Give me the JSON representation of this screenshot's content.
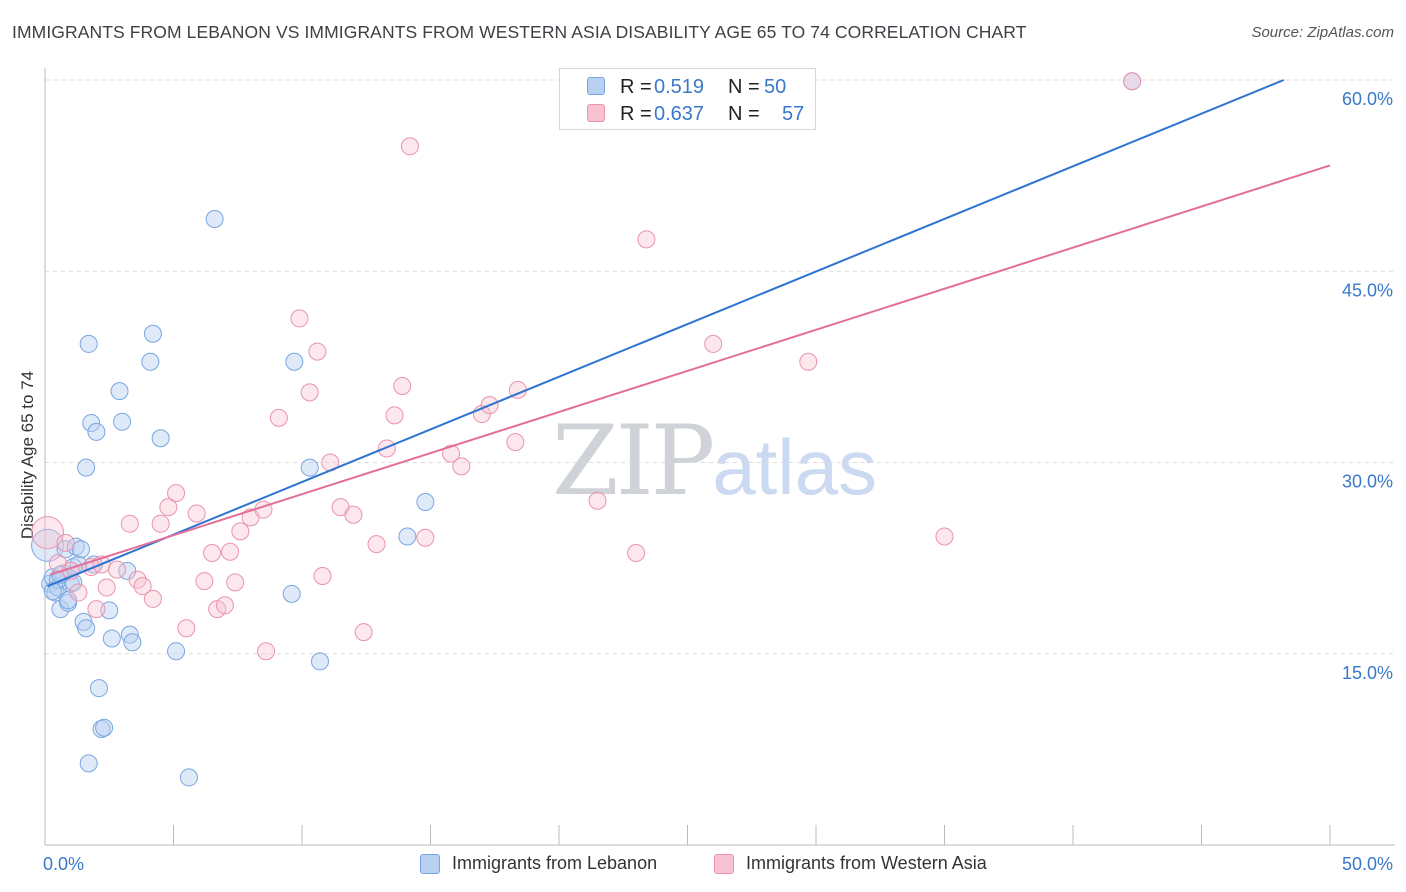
{
  "header": {
    "title": "IMMIGRANTS FROM LEBANON VS IMMIGRANTS FROM WESTERN ASIA DISABILITY AGE 65 TO 74 CORRELATION CHART",
    "source": "Source: ZipAtlas.com"
  },
  "watermark": {
    "zip": "ZIP",
    "atlas": "atlas"
  },
  "legend": {
    "r_label": "R =",
    "n_label": "N =",
    "series": [
      {
        "name": "Immigrants from Lebanon",
        "r": "0.519",
        "n": "50",
        "fill": "#b7d0f2",
        "stroke": "#7aa6e0"
      },
      {
        "name": "Immigrants from Western Asia",
        "r": "0.637",
        "n": "57",
        "fill": "#f8c2d2",
        "stroke": "#ea93ad"
      }
    ]
  },
  "colors": {
    "blue_line": "#2e74d1",
    "pink_line": "#e36f99",
    "axis_tick_text": "#3a78c9",
    "grid": "#dcdcdc"
  },
  "chart_data": {
    "type": "scatter",
    "ylabel": "Disability Age 65 to 74",
    "xlabel": "",
    "xlim": [
      0,
      50
    ],
    "ylim": [
      0,
      60
    ],
    "x_tick_labels": [
      "0.0%",
      "50.0%"
    ],
    "y_ticks": [
      15,
      30,
      45,
      60
    ],
    "y_tick_labels": [
      "15.0%",
      "30.0%",
      "45.0%",
      "60.0%"
    ],
    "series": [
      {
        "name": "Immigrants from Lebanon",
        "trend": {
          "x": [
            0.1,
            48.2
          ],
          "y": [
            20.3,
            60.0
          ]
        },
        "points": [
          [
            0.1,
            23.5
          ],
          [
            0.2,
            20.5
          ],
          [
            0.3,
            21.0
          ],
          [
            0.4,
            19.8
          ],
          [
            0.5,
            20.2
          ],
          [
            0.6,
            18.5
          ],
          [
            0.7,
            21.3
          ],
          [
            0.8,
            23.2
          ],
          [
            0.9,
            19.0
          ],
          [
            1.0,
            20.5
          ],
          [
            1.1,
            21.8
          ],
          [
            1.2,
            23.4
          ],
          [
            1.3,
            22.0
          ],
          [
            1.4,
            23.2
          ],
          [
            1.5,
            17.5
          ],
          [
            1.6,
            17.0
          ],
          [
            1.7,
            39.3
          ],
          [
            1.8,
            33.1
          ],
          [
            1.9,
            22.0
          ],
          [
            2.0,
            32.4
          ],
          [
            2.1,
            12.3
          ],
          [
            2.2,
            9.1
          ],
          [
            2.3,
            9.2
          ],
          [
            2.5,
            18.4
          ],
          [
            2.6,
            16.2
          ],
          [
            2.9,
            35.6
          ],
          [
            3.0,
            33.2
          ],
          [
            3.2,
            21.5
          ],
          [
            3.3,
            16.5
          ],
          [
            3.4,
            15.9
          ],
          [
            4.1,
            37.9
          ],
          [
            4.2,
            40.1
          ],
          [
            4.5,
            31.9
          ],
          [
            5.1,
            15.2
          ],
          [
            5.6,
            5.3
          ],
          [
            6.6,
            49.1
          ],
          [
            9.6,
            19.7
          ],
          [
            9.7,
            37.9
          ],
          [
            10.3,
            29.6
          ],
          [
            10.7,
            14.4
          ],
          [
            14.1,
            24.2
          ],
          [
            14.8,
            26.9
          ],
          [
            1.6,
            29.6
          ],
          [
            1.7,
            6.4
          ],
          [
            0.5,
            20.8
          ],
          [
            0.9,
            19.2
          ],
          [
            1.1,
            20.6
          ],
          [
            0.3,
            19.9
          ],
          [
            0.6,
            21.2
          ],
          [
            42.3,
            59.9
          ]
        ]
      },
      {
        "name": "Immigrants from Western Asia",
        "trend": {
          "x": [
            0.2,
            50.0
          ],
          "y": [
            21.2,
            53.3
          ]
        },
        "points": [
          [
            0.1,
            24.5
          ],
          [
            0.5,
            22.1
          ],
          [
            0.8,
            23.7
          ],
          [
            1.0,
            21.5
          ],
          [
            1.3,
            19.8
          ],
          [
            1.8,
            21.8
          ],
          [
            2.0,
            18.5
          ],
          [
            2.2,
            22.0
          ],
          [
            2.4,
            20.2
          ],
          [
            2.8,
            21.6
          ],
          [
            3.3,
            25.2
          ],
          [
            3.6,
            20.8
          ],
          [
            3.8,
            20.3
          ],
          [
            4.2,
            19.3
          ],
          [
            4.5,
            25.2
          ],
          [
            4.8,
            26.5
          ],
          [
            5.1,
            27.6
          ],
          [
            5.5,
            17.0
          ],
          [
            5.9,
            26.0
          ],
          [
            6.2,
            20.7
          ],
          [
            6.5,
            22.9
          ],
          [
            6.7,
            18.5
          ],
          [
            7.0,
            18.8
          ],
          [
            7.2,
            23.0
          ],
          [
            7.4,
            20.6
          ],
          [
            7.6,
            24.6
          ],
          [
            8.0,
            25.7
          ],
          [
            8.5,
            26.3
          ],
          [
            8.6,
            15.2
          ],
          [
            9.1,
            33.5
          ],
          [
            9.9,
            41.3
          ],
          [
            10.3,
            35.5
          ],
          [
            10.6,
            38.7
          ],
          [
            10.8,
            21.1
          ],
          [
            11.1,
            30.0
          ],
          [
            11.5,
            26.5
          ],
          [
            12.0,
            25.9
          ],
          [
            12.4,
            16.7
          ],
          [
            12.9,
            23.6
          ],
          [
            13.3,
            31.1
          ],
          [
            13.6,
            33.7
          ],
          [
            13.9,
            36.0
          ],
          [
            14.2,
            54.8
          ],
          [
            14.8,
            24.1
          ],
          [
            15.8,
            30.7
          ],
          [
            16.2,
            29.7
          ],
          [
            17.0,
            33.8
          ],
          [
            17.3,
            34.5
          ],
          [
            18.3,
            31.6
          ],
          [
            18.4,
            35.7
          ],
          [
            21.5,
            27.0
          ],
          [
            23.0,
            22.9
          ],
          [
            23.4,
            47.5
          ],
          [
            26.0,
            39.3
          ],
          [
            29.7,
            37.9
          ],
          [
            35.0,
            24.2
          ],
          [
            42.3,
            59.9
          ]
        ]
      }
    ]
  }
}
